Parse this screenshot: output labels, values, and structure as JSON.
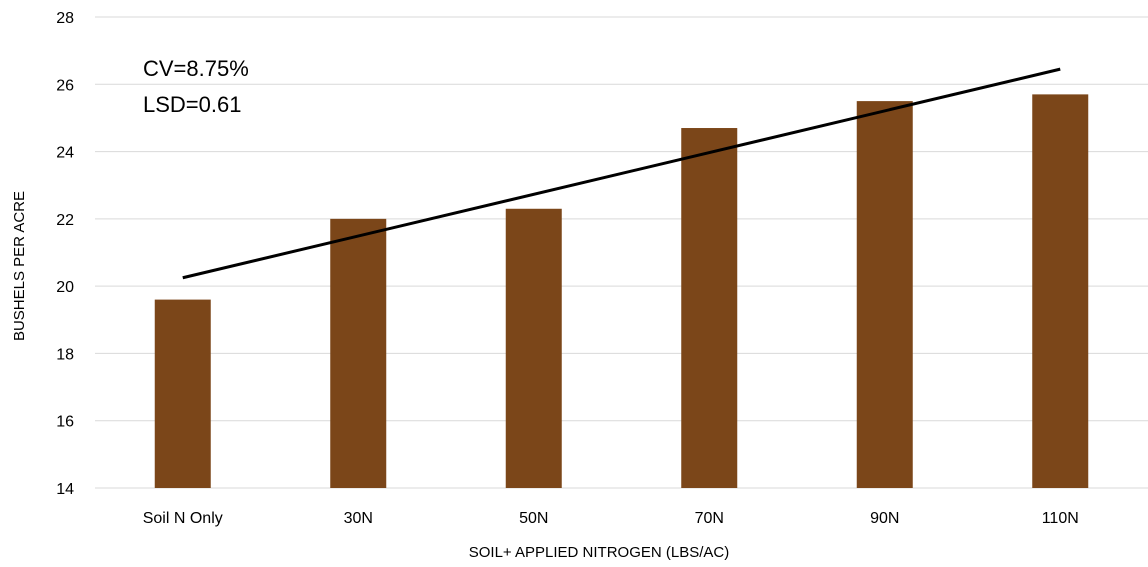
{
  "chart_data": {
    "type": "bar",
    "title": "",
    "xlabel": "SOIL+ APPLIED NITROGEN (LBS/AC)",
    "ylabel": "BUSHELS PER ACRE",
    "categories": [
      "Soil N Only",
      "30N",
      "50N",
      "70N",
      "90N",
      "110N"
    ],
    "values": [
      19.6,
      22.0,
      22.3,
      24.7,
      25.5,
      25.7
    ],
    "ylim": [
      14,
      28
    ],
    "yticks": [
      14,
      16,
      18,
      20,
      22,
      24,
      26,
      28
    ],
    "grid": true,
    "legend": "none",
    "trendline": {
      "type": "linear",
      "start": 20.25,
      "end": 26.45
    },
    "annotations": [
      "CV=8.75%",
      "LSD=0.61"
    ],
    "colors": {
      "bar": "#7b4619",
      "trendline": "#000000",
      "grid": "#d9d9d9"
    }
  }
}
